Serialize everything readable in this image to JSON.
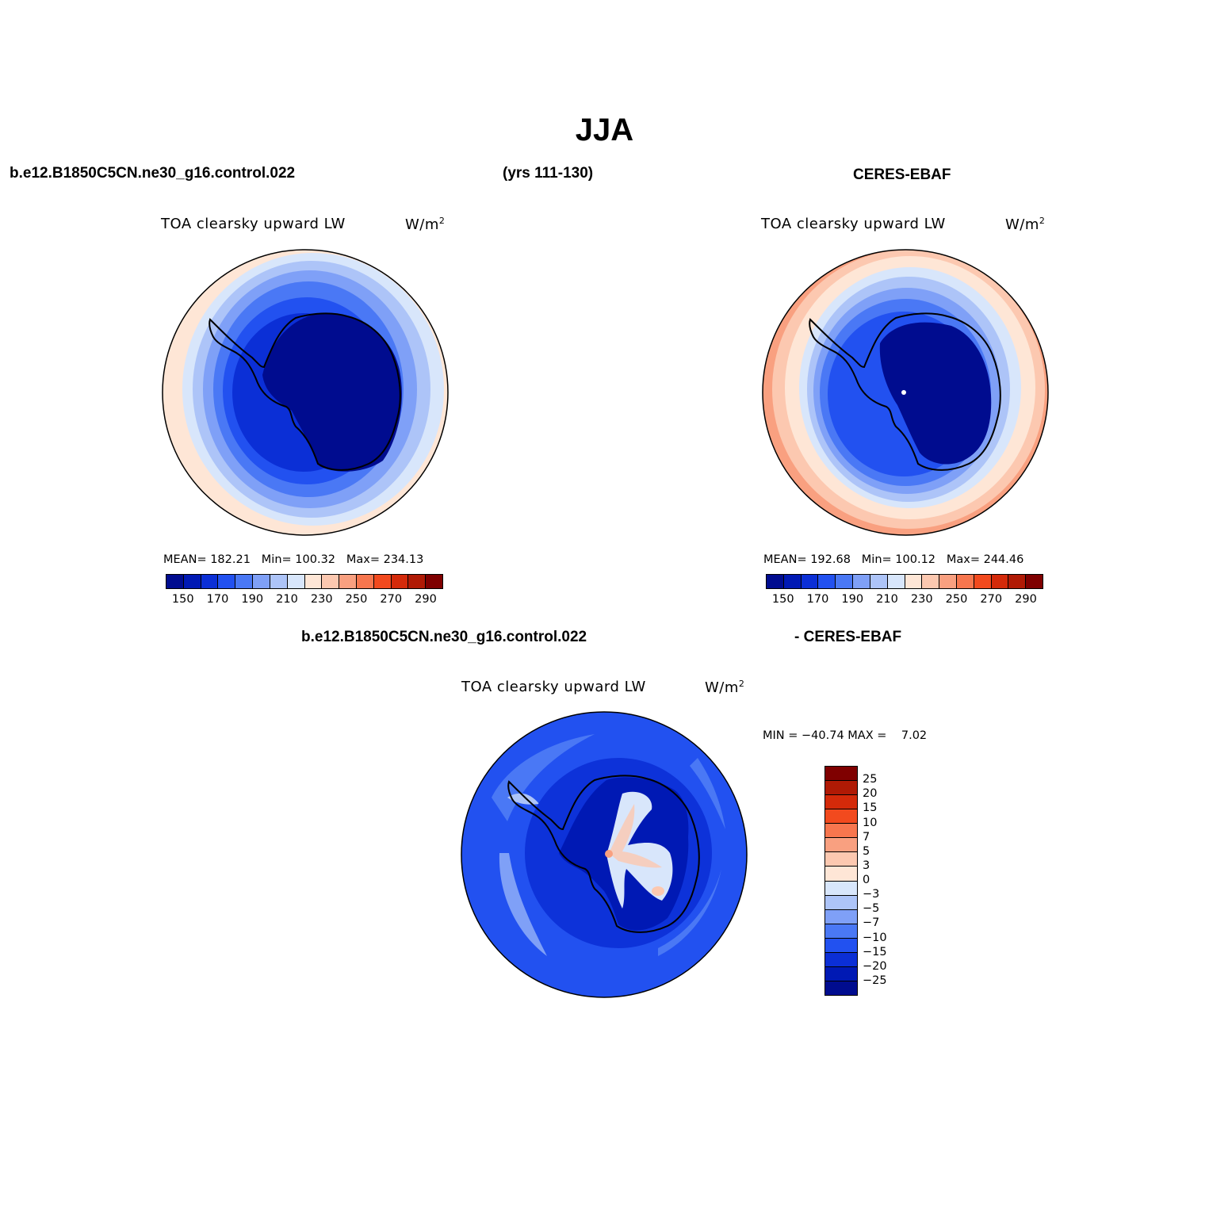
{
  "figure": {
    "title": "JJA",
    "case_name": "b.e12.B1850C5CN.ne30_g16.control.022",
    "years": "(yrs 111-130)",
    "obs_name": "CERES-EBAF",
    "diff_left": "b.e12.B1850C5CN.ne30_g16.control.022",
    "diff_right": "- CERES-EBAF"
  },
  "panels": {
    "model": {
      "variable": "TOA clearsky upward LW",
      "units": "W/m",
      "units_sup": "2",
      "mean_label": "MEAN=",
      "mean": "182.21",
      "min_label": "Min=",
      "min": "100.32",
      "max_label": "Max=",
      "max": "234.13"
    },
    "obs": {
      "variable": "TOA clearsky upward LW",
      "units": "W/m",
      "units_sup": "2",
      "mean_label": "MEAN=",
      "mean": "192.68",
      "min_label": "Min=",
      "min": "100.12",
      "max_label": "Max=",
      "max": "244.46"
    },
    "diff": {
      "variable": "TOA clearsky upward LW",
      "units": "W/m",
      "units_sup": "2",
      "min_label": "MIN =",
      "min": "−40.74",
      "max_label": "MAX =",
      "max": "7.02"
    }
  },
  "colorbars": {
    "abs": {
      "colors": [
        "#000c8f",
        "#0019b4",
        "#0b2fd6",
        "#2251f0",
        "#4a78f5",
        "#7fa0f7",
        "#adc4f8",
        "#d8e6fb",
        "#fee6d6",
        "#fcc8b0",
        "#f9a080",
        "#f7764e",
        "#f24a1e",
        "#d42a0a",
        "#b01a05",
        "#7f0000"
      ],
      "labels": [
        "150",
        "170",
        "190",
        "210",
        "230",
        "250",
        "270",
        "290"
      ]
    },
    "diff": {
      "colors": [
        "#7f0000",
        "#b01a05",
        "#d42a0a",
        "#f24a1e",
        "#f7764e",
        "#f9a080",
        "#fcc8b0",
        "#fee6d6",
        "#d8e6fb",
        "#adc4f8",
        "#7fa0f7",
        "#4a78f5",
        "#2251f0",
        "#0b2fd6",
        "#0019b4",
        "#000c8f"
      ],
      "labels": [
        "25",
        "20",
        "15",
        "10",
        "7",
        "5",
        "3",
        "0",
        "−3",
        "−5",
        "−7",
        "−10",
        "−15",
        "−20",
        "−25"
      ]
    }
  }
}
